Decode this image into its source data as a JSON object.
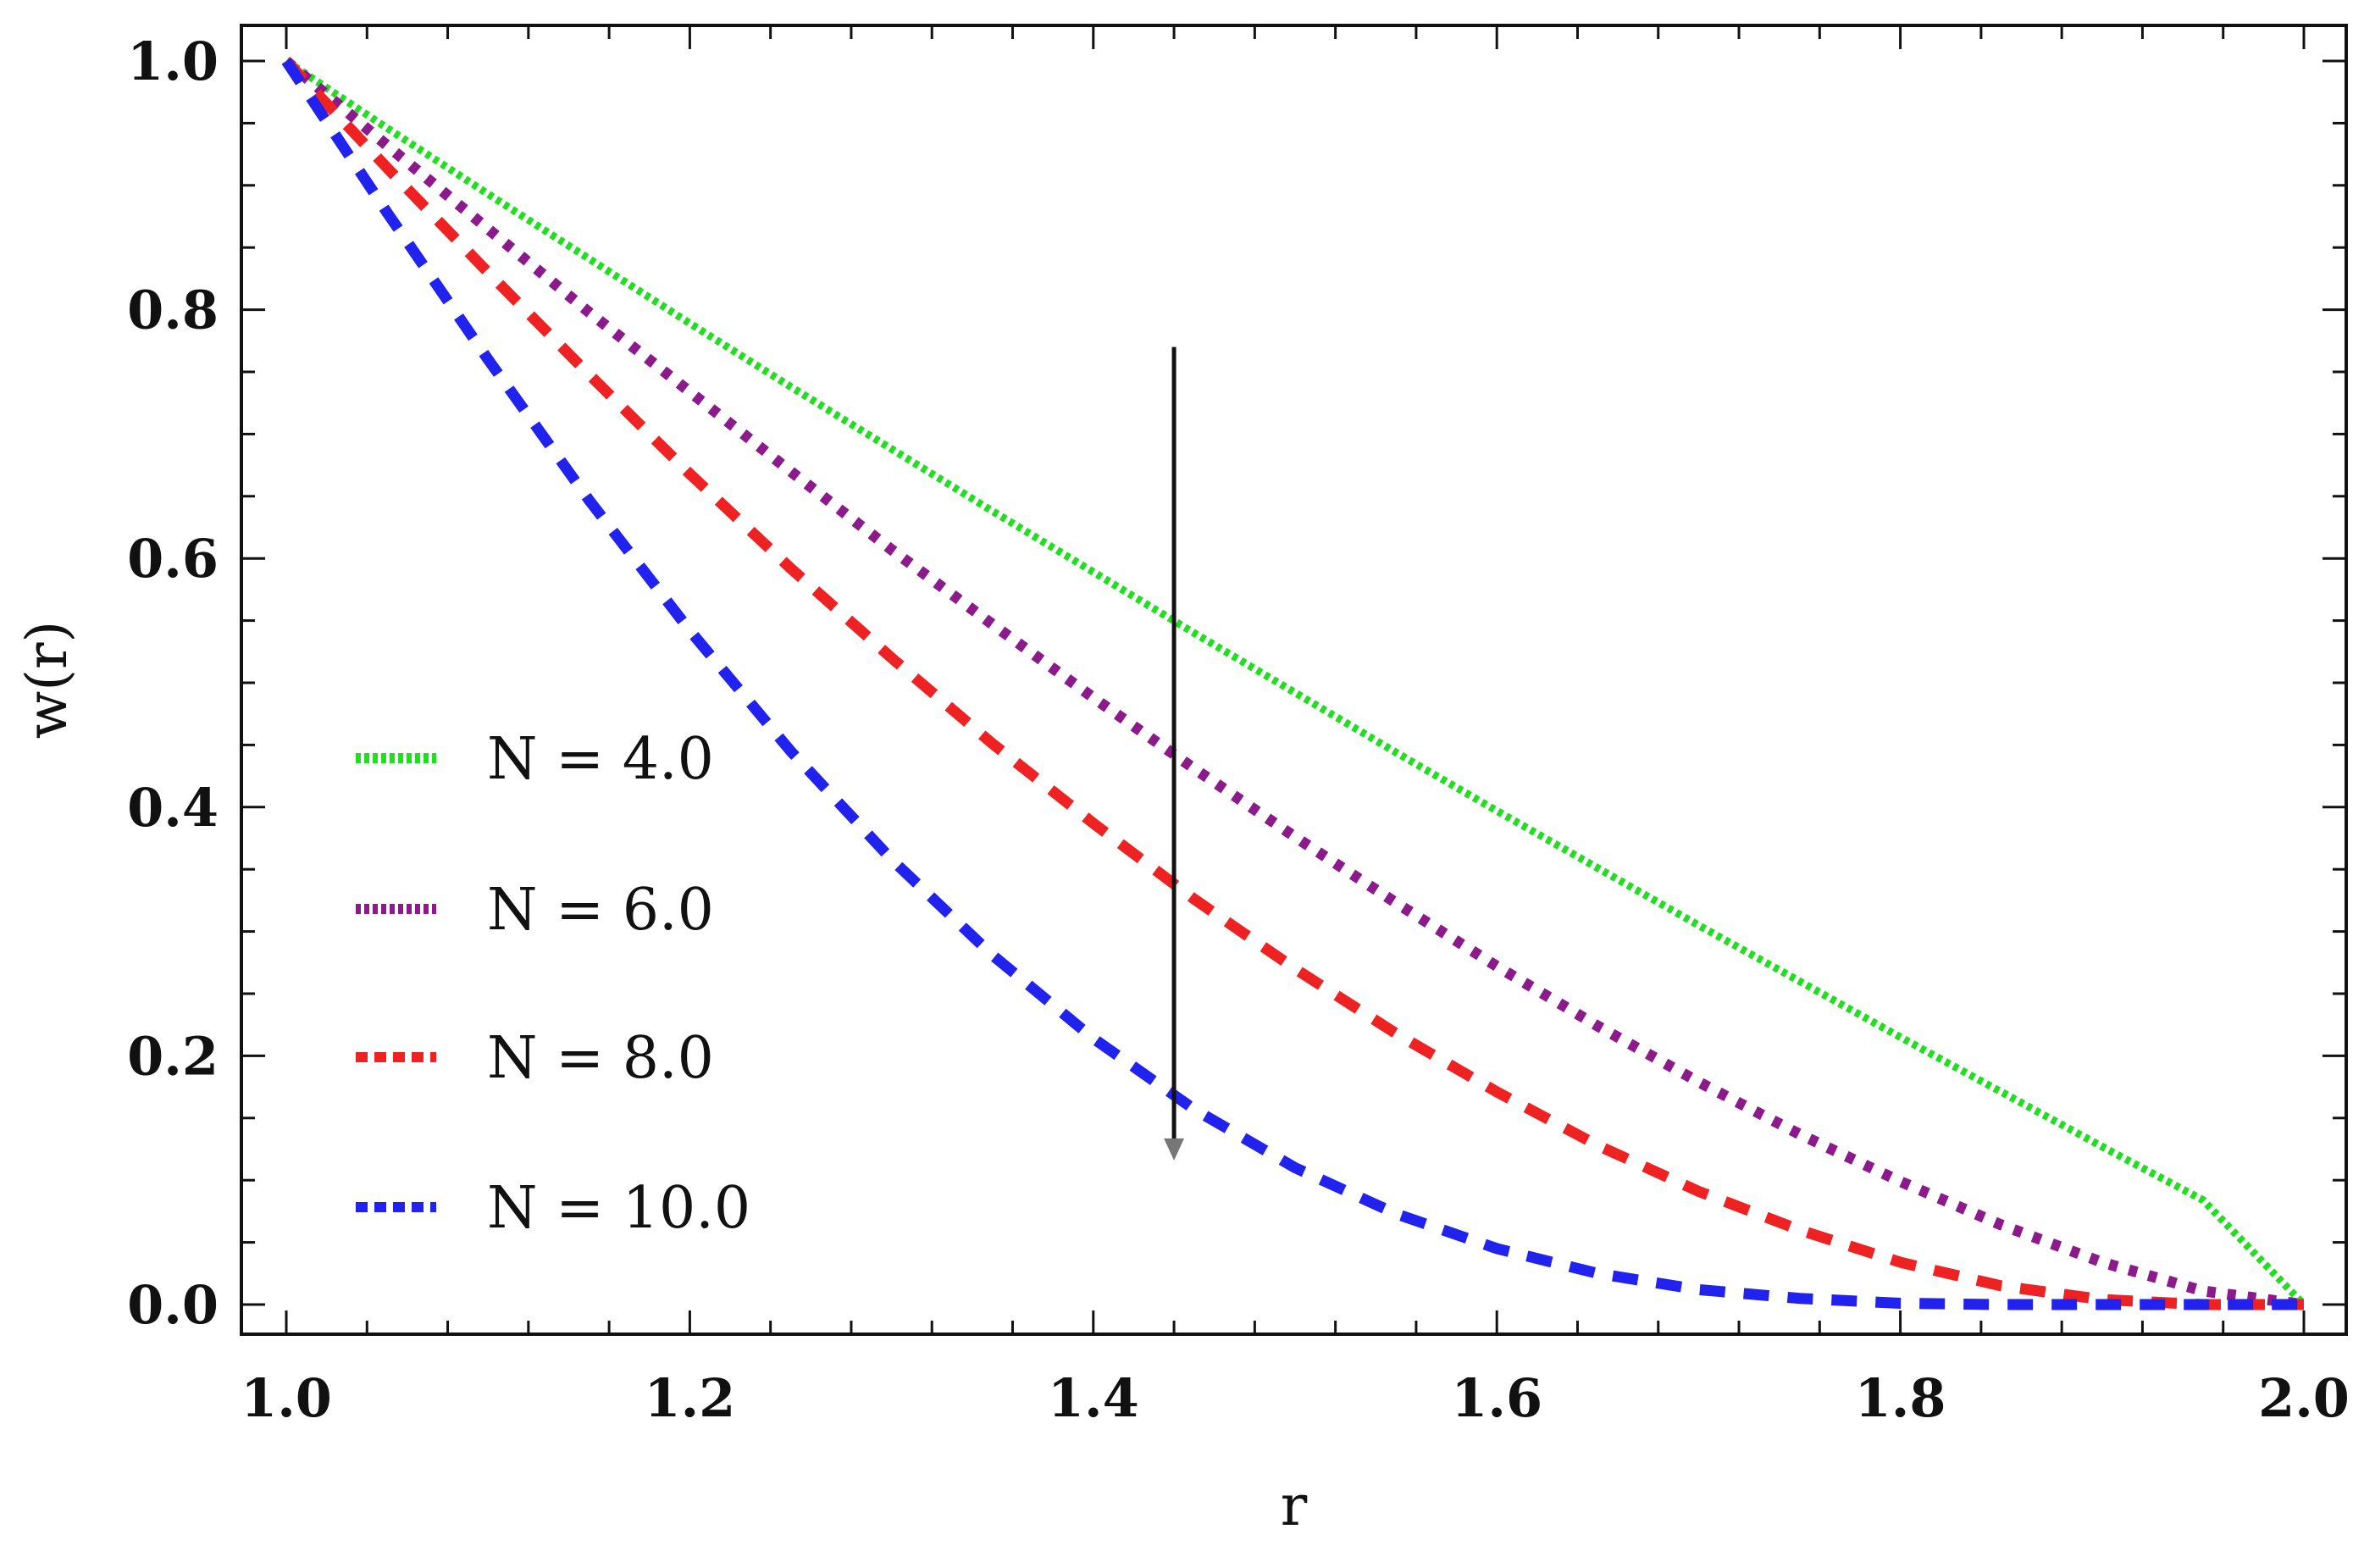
{
  "chart_data": {
    "type": "line",
    "xlabel": "r",
    "ylabel": "w(r)",
    "xlim": [
      1.0,
      2.0
    ],
    "ylim": [
      0.0,
      1.0
    ],
    "x_ticks": [
      "1.0",
      "1.2",
      "1.4",
      "1.6",
      "1.8",
      "2.0"
    ],
    "y_ticks": [
      "0.0",
      "0.2",
      "0.4",
      "0.6",
      "0.8",
      "1.0"
    ],
    "legend_position": "left",
    "grid": false,
    "x": [
      1.0,
      1.05,
      1.1,
      1.15,
      1.2,
      1.25,
      1.3,
      1.35,
      1.4,
      1.45,
      1.5,
      1.55,
      1.6,
      1.65,
      1.7,
      1.75,
      1.8,
      1.85,
      1.9,
      1.95,
      2.0
    ],
    "series": [
      {
        "name": "N = 4.0",
        "color": "#22dd22",
        "style": "dotted",
        "values": [
          1.0,
          0.946,
          0.893,
          0.841,
          0.789,
          0.738,
          0.688,
          0.638,
          0.589,
          0.54,
          0.492,
          0.444,
          0.397,
          0.351,
          0.305,
          0.26,
          0.215,
          0.171,
          0.127,
          0.084,
          0.0
        ]
      },
      {
        "name": "N = 6.0",
        "color": "#8b1a8b",
        "style": "dotted",
        "values": [
          1.0,
          0.932,
          0.865,
          0.798,
          0.734,
          0.67,
          0.607,
          0.547,
          0.488,
          0.431,
          0.376,
          0.323,
          0.272,
          0.224,
          0.179,
          0.137,
          0.099,
          0.064,
          0.034,
          0.011,
          0.0
        ]
      },
      {
        "name": "N = 8.0",
        "color": "#ee2222",
        "style": "dashed",
        "values": [
          1.0,
          0.914,
          0.83,
          0.748,
          0.668,
          0.592,
          0.52,
          0.451,
          0.387,
          0.326,
          0.27,
          0.218,
          0.171,
          0.128,
          0.091,
          0.06,
          0.034,
          0.015,
          0.004,
          0.0,
          0.0
        ]
      },
      {
        "name": "N = 10.0",
        "color": "#2222ee",
        "style": "dashed",
        "values": [
          1.0,
          0.878,
          0.76,
          0.647,
          0.542,
          0.445,
          0.358,
          0.281,
          0.214,
          0.157,
          0.11,
          0.073,
          0.045,
          0.025,
          0.012,
          0.005,
          0.001,
          0.0,
          0.0,
          0.0,
          0.0
        ]
      }
    ],
    "annotation": {
      "type": "vertical-arrow",
      "x": 1.44,
      "y_from": 0.77,
      "y_to": 0.12
    }
  }
}
